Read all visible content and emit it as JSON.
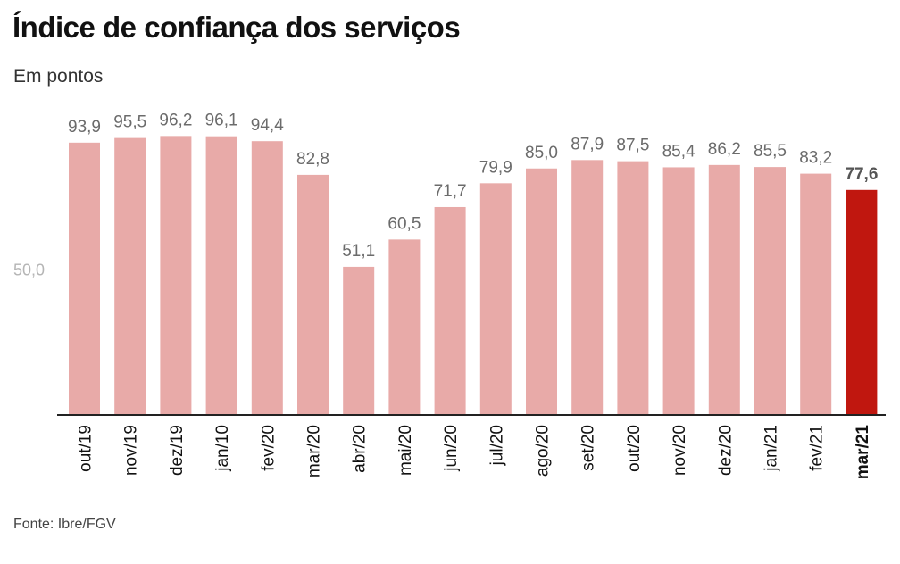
{
  "title": "Índice de confiança dos serviços",
  "subtitle": "Em pontos",
  "source": "Fonte: Ibre/FGV",
  "colors": {
    "bar": "#e8aaa8",
    "highlight": "#c0170f",
    "gridline": "#e6e6e6",
    "axis": "#222222"
  },
  "chart_data": {
    "type": "bar",
    "title": "Índice de confiança dos serviços",
    "subtitle": "Em pontos",
    "categories": [
      "out/19",
      "nov/19",
      "dez/19",
      "jan/10",
      "fev/20",
      "mar/20",
      "abr/20",
      "mai/20",
      "jun/20",
      "jul/20",
      "ago/20",
      "set/20",
      "out/20",
      "nov/20",
      "dez/20",
      "jan/21",
      "fev/21",
      "mar/21"
    ],
    "values": [
      93.9,
      95.5,
      96.2,
      96.1,
      94.4,
      82.8,
      51.1,
      60.5,
      71.7,
      79.9,
      85.0,
      87.9,
      87.5,
      85.4,
      86.2,
      85.5,
      83.2,
      77.6
    ],
    "value_labels": [
      "93,9",
      "95,5",
      "96,2",
      "96,1",
      "94,4",
      "82,8",
      "51,1",
      "60,5",
      "71,7",
      "79,9",
      "85,0",
      "87,9",
      "87,5",
      "85,4",
      "86,2",
      "85,5",
      "83,2",
      "77,6"
    ],
    "highlight_index": 17,
    "yticks": [
      50.0
    ],
    "ytick_labels": [
      "50,0"
    ],
    "ylim": [
      0,
      100
    ],
    "grid": true,
    "legend": "none"
  }
}
